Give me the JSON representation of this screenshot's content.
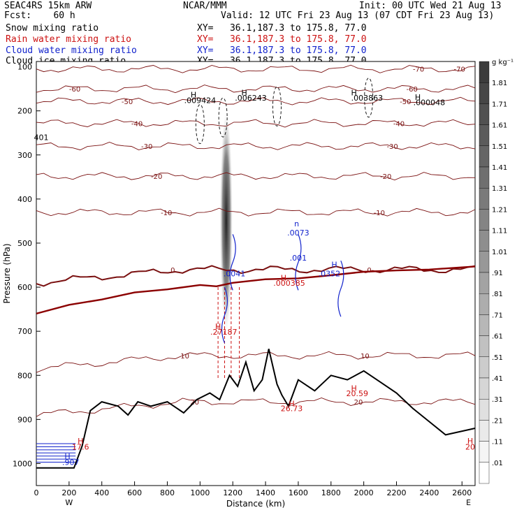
{
  "header": {
    "left1": "SEAC4RS 15km ARW",
    "center1": "NCAR/MMM",
    "right1": "Init: 00 UTC Wed 21 Aug 13",
    "left2": "Fcst:    60 h",
    "right2": "Valid: 12 UTC Fri 23 Aug 13 (07 CDT Fri 23 Aug 13)",
    "fields": [
      {
        "name": "Snow mixing ratio",
        "xy": "XY=   36.1,187.3 to 175.8, 77.0",
        "color": "#000000"
      },
      {
        "name": "Rain water mixing ratio",
        "xy": "XY=   36.1,187.3 to 175.8, 77.0",
        "color": "#cc1111"
      },
      {
        "name": "Cloud water mixing ratio",
        "xy": "XY=   36.1,187.3 to 175.8, 77.0",
        "color": "#1122cc"
      },
      {
        "name": "Cloud ice mixing ratio",
        "xy": "XY=   36.1,187.3 to 175.8, 77.0",
        "color": "#000000"
      }
    ]
  },
  "chart_data": {
    "type": "cross-section",
    "xlabel": "Distance (km)",
    "ylabel": "Pressure (hPa)",
    "xlim": [
      0,
      2680
    ],
    "ylim_pressure": [
      100,
      1050
    ],
    "x_ticks": [
      0,
      200,
      400,
      600,
      800,
      1000,
      1200,
      1400,
      1600,
      1800,
      2000,
      2200,
      2400,
      2600
    ],
    "y_ticks": [
      200,
      300,
      400,
      500,
      600,
      700,
      800,
      900,
      1000
    ],
    "y_top_label": "100",
    "west_label": "W",
    "east_label": "E",
    "colorbar": {
      "unit": "g kg⁻¹",
      "levels": [
        "1.81",
        "1.71",
        "1.61",
        "1.51",
        "1.41",
        "1.31",
        "1.21",
        "1.11",
        "1.01",
        ".91",
        ".81",
        ".71",
        ".61",
        ".51",
        ".41",
        ".31",
        ".21",
        ".11",
        ".01"
      ]
    },
    "temperature_contours": [
      {
        "label": "-70",
        "pressure": 105
      },
      {
        "label": "-60",
        "pressure": 150
      },
      {
        "label": "-50",
        "pressure": 178
      },
      {
        "label": "-40",
        "pressure": 228
      },
      {
        "label": "-30",
        "pressure": 280
      },
      {
        "label": "-20",
        "pressure": 348
      },
      {
        "label": "-10",
        "pressure": 430
      },
      {
        "label": "0",
        "pressure": 560
      },
      {
        "label": "10",
        "pressure": 755
      },
      {
        "label": "20",
        "pressure": 860
      }
    ],
    "freezing_level": [
      [
        0,
        660
      ],
      [
        200,
        640
      ],
      [
        400,
        628
      ],
      [
        600,
        612
      ],
      [
        800,
        605
      ],
      [
        1000,
        595
      ],
      [
        1100,
        598
      ],
      [
        1200,
        590
      ],
      [
        1400,
        582
      ],
      [
        1600,
        580
      ],
      [
        1800,
        573
      ],
      [
        2000,
        565
      ],
      [
        2200,
        562
      ],
      [
        2400,
        560
      ],
      [
        2680,
        553
      ]
    ],
    "terrain": [
      [
        0,
        1010
      ],
      [
        230,
        1010
      ],
      [
        280,
        960
      ],
      [
        330,
        880
      ],
      [
        400,
        860
      ],
      [
        500,
        870
      ],
      [
        560,
        890
      ],
      [
        620,
        860
      ],
      [
        700,
        870
      ],
      [
        800,
        860
      ],
      [
        900,
        885
      ],
      [
        980,
        855
      ],
      [
        1060,
        840
      ],
      [
        1120,
        855
      ],
      [
        1180,
        800
      ],
      [
        1230,
        825
      ],
      [
        1280,
        770
      ],
      [
        1330,
        835
      ],
      [
        1380,
        810
      ],
      [
        1420,
        740
      ],
      [
        1470,
        820
      ],
      [
        1500,
        845
      ],
      [
        1540,
        870
      ],
      [
        1600,
        810
      ],
      [
        1700,
        835
      ],
      [
        1800,
        800
      ],
      [
        1900,
        810
      ],
      [
        2000,
        790
      ],
      [
        2100,
        815
      ],
      [
        2200,
        840
      ],
      [
        2300,
        875
      ],
      [
        2400,
        905
      ],
      [
        2500,
        935
      ],
      [
        2680,
        920
      ]
    ],
    "labels": [
      {
        "text": "H",
        "x": 960,
        "p": 170,
        "color": "#000000"
      },
      {
        "text": ".009424",
        "x": 1000,
        "p": 182,
        "color": "#000000"
      },
      {
        "text": "H",
        "x": 1270,
        "p": 165,
        "color": "#000000"
      },
      {
        "text": ".006243",
        "x": 1310,
        "p": 177,
        "color": "#000000"
      },
      {
        "text": "H",
        "x": 1940,
        "p": 165,
        "color": "#000000"
      },
      {
        "text": ".003863",
        "x": 2020,
        "p": 177,
        "color": "#000000"
      },
      {
        "text": "H",
        "x": 2330,
        "p": 175,
        "color": "#000000"
      },
      {
        "text": ".000048",
        "x": 2400,
        "p": 187,
        "color": "#000000"
      },
      {
        "text": "401",
        "x": 30,
        "p": 266,
        "color": "#000000"
      },
      {
        "text": "n",
        "x": 1590,
        "p": 462,
        "color": "#1122cc"
      },
      {
        "text": ".0073",
        "x": 1600,
        "p": 483,
        "color": "#1122cc"
      },
      {
        "text": ".001",
        "x": 1600,
        "p": 540,
        "color": "#1122cc"
      },
      {
        "text": "H",
        "x": 1820,
        "p": 555,
        "color": "#1122cc"
      },
      {
        "text": ".0352",
        "x": 1790,
        "p": 575,
        "color": "#1122cc"
      },
      {
        "text": ".0041",
        "x": 1210,
        "p": 575,
        "color": "#1122cc"
      },
      {
        "text": "H",
        "x": 1510,
        "p": 585,
        "color": "#cc1111"
      },
      {
        "text": ".000385",
        "x": 1545,
        "p": 597,
        "color": "#cc1111"
      },
      {
        "text": "H",
        "x": 1110,
        "p": 695,
        "color": "#cc1111"
      },
      {
        "text": ".27187",
        "x": 1145,
        "p": 708,
        "color": "#cc1111"
      },
      {
        "text": "H",
        "x": 1560,
        "p": 870,
        "color": "#cc1111"
      },
      {
        "text": "26.73",
        "x": 1560,
        "p": 881,
        "color": "#cc1111"
      },
      {
        "text": "H",
        "x": 1940,
        "p": 835,
        "color": "#cc1111"
      },
      {
        "text": "20.59",
        "x": 1960,
        "p": 847,
        "color": "#cc1111"
      },
      {
        "text": "H",
        "x": 270,
        "p": 955,
        "color": "#cc1111"
      },
      {
        "text": "17.6",
        "x": 270,
        "p": 968,
        "color": "#cc1111"
      },
      {
        "text": "H",
        "x": 190,
        "p": 990,
        "color": "#1122cc"
      },
      {
        "text": ".907",
        "x": 210,
        "p": 1003,
        "color": "#1122cc"
      },
      {
        "text": "H",
        "x": 2650,
        "p": 955,
        "color": "#cc1111"
      },
      {
        "text": "20",
        "x": 2650,
        "p": 968,
        "color": "#cc1111"
      }
    ]
  }
}
